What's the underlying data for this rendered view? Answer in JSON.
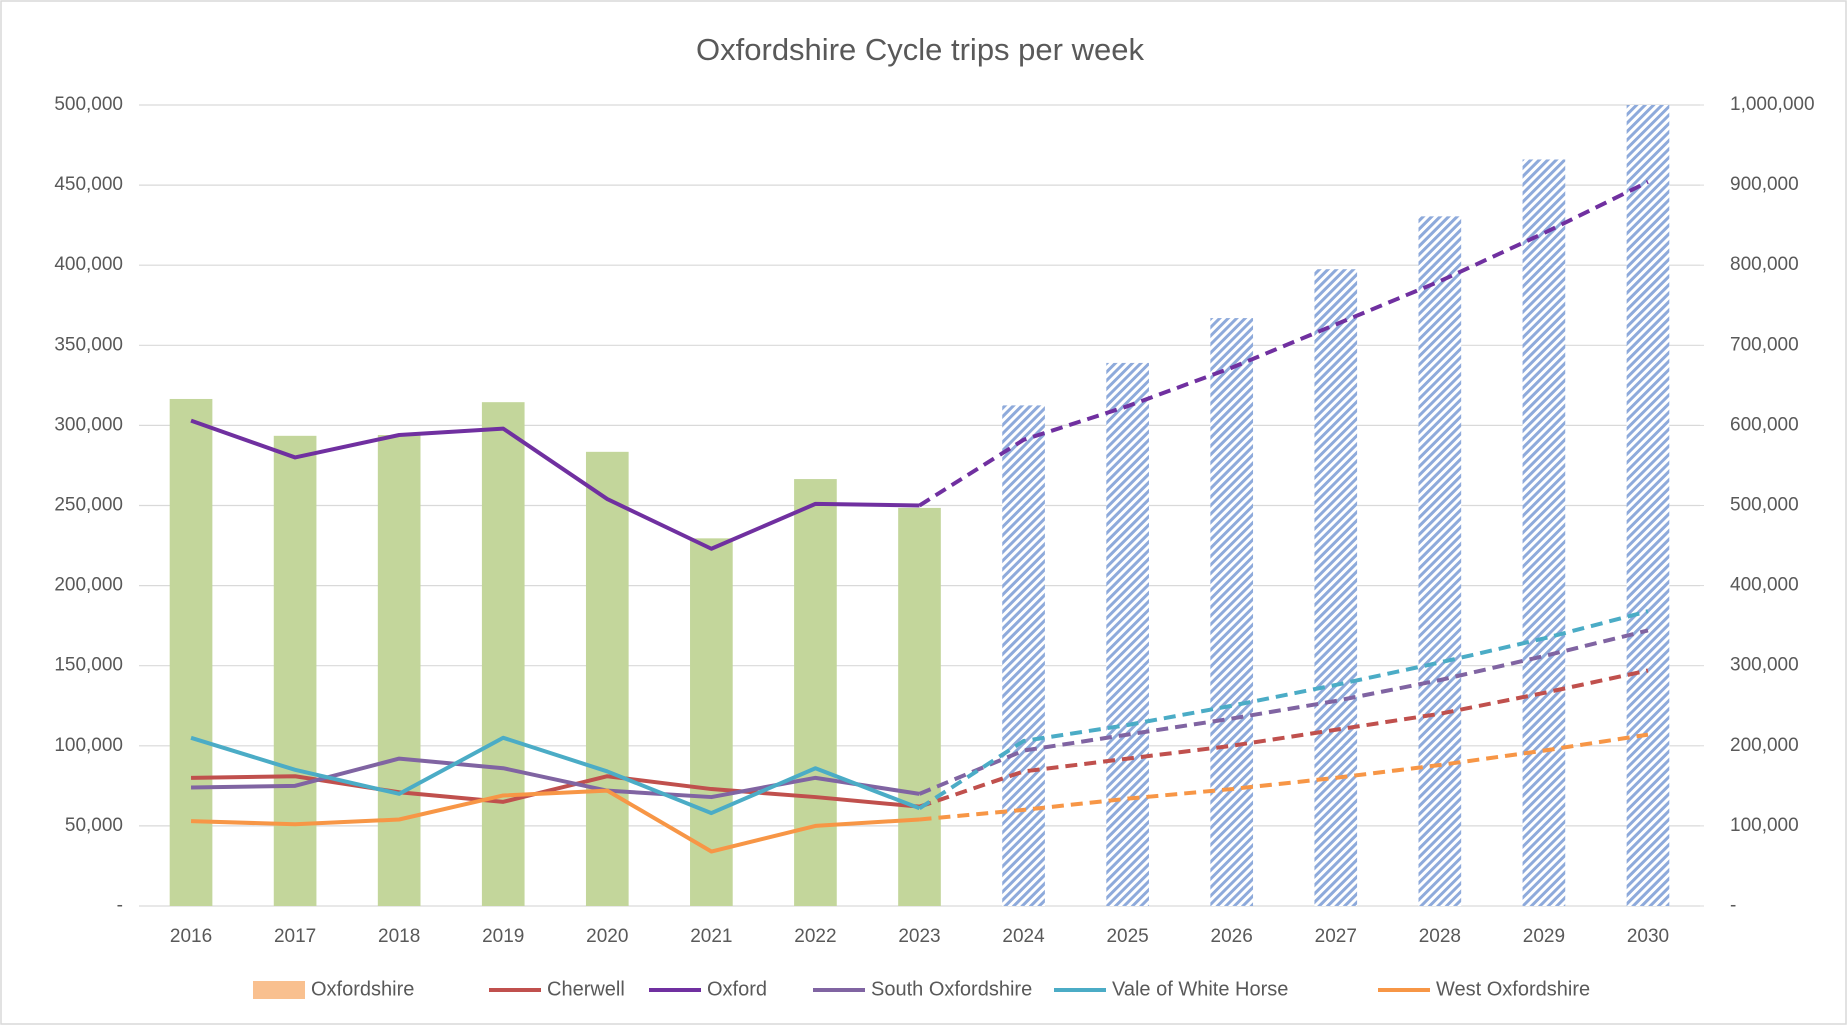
{
  "chart_data": {
    "type": "bar-line",
    "title": "Oxfordshire Cycle trips per week",
    "categories": [
      "2016",
      "2017",
      "2018",
      "2019",
      "2020",
      "2021",
      "2022",
      "2023",
      "2024",
      "2025",
      "2026",
      "2027",
      "2028",
      "2029",
      "2030"
    ],
    "forecast_after": "2023",
    "ylim": [
      0,
      500000
    ],
    "yticks": [
      {
        "value": 0,
        "label": "-"
      },
      {
        "value": 50000,
        "label": "50,000"
      },
      {
        "value": 100000,
        "label": "100,000"
      },
      {
        "value": 150000,
        "label": "150,000"
      },
      {
        "value": 200000,
        "label": "200,000"
      },
      {
        "value": 250000,
        "label": "250,000"
      },
      {
        "value": 300000,
        "label": "300,000"
      },
      {
        "value": 350000,
        "label": "350,000"
      },
      {
        "value": 400000,
        "label": "400,000"
      },
      {
        "value": 450000,
        "label": "450,000"
      },
      {
        "value": 500000,
        "label": "500,000"
      }
    ],
    "y2lim": [
      0,
      1000000
    ],
    "y2ticks": [
      {
        "value": 0,
        "label": "-"
      },
      {
        "value": 100000,
        "label": "100,000"
      },
      {
        "value": 200000,
        "label": "200,000"
      },
      {
        "value": 300000,
        "label": "300,000"
      },
      {
        "value": 400000,
        "label": "400,000"
      },
      {
        "value": 500000,
        "label": "500,000"
      },
      {
        "value": 600000,
        "label": "600,000"
      },
      {
        "value": 700000,
        "label": "700,000"
      },
      {
        "value": 800000,
        "label": "800,000"
      },
      {
        "value": 900000,
        "label": "900,000"
      },
      {
        "value": 1000000,
        "label": "1,000,000"
      }
    ],
    "grid": true,
    "legend": "bottom",
    "series": [
      {
        "name": "Oxfordshire",
        "type": "bar",
        "axis": "y2",
        "color": "#c3d69b",
        "forecast_color": "#8eaadb",
        "legend_color": "#f9c08f",
        "values": [
          633000,
          587000,
          588000,
          629000,
          567000,
          459000,
          533000,
          497000,
          625000,
          678000,
          734000,
          795000,
          861000,
          932000,
          1000000
        ]
      },
      {
        "name": "Cherwell",
        "type": "line",
        "color": "#c0504d",
        "width": 4,
        "values": [
          80000,
          81000,
          71000,
          65000,
          81000,
          73000,
          68000,
          62000,
          84000,
          92000,
          100000,
          110000,
          120000,
          133000,
          147000
        ]
      },
      {
        "name": "Oxford",
        "type": "line",
        "color": "#7030a0",
        "width": 4,
        "values": [
          303000,
          280000,
          294000,
          298000,
          254000,
          223000,
          251000,
          250000,
          291000,
          312000,
          336000,
          363000,
          390000,
          420000,
          452000
        ]
      },
      {
        "name": "South Oxfordshire",
        "type": "line",
        "color": "#8064a2",
        "width": 4,
        "values": [
          74000,
          75000,
          92000,
          86000,
          72000,
          68000,
          80000,
          70000,
          97000,
          107000,
          117000,
          128000,
          141000,
          156000,
          172000
        ]
      },
      {
        "name": "Vale of White Horse",
        "type": "line",
        "color": "#4bacc6",
        "width": 4,
        "values": [
          105000,
          85000,
          70000,
          105000,
          84000,
          58000,
          86000,
          61000,
          103000,
          113000,
          125000,
          138000,
          152000,
          167000,
          184000
        ]
      },
      {
        "name": "West Oxfordshire",
        "type": "line",
        "color": "#f79646",
        "width": 4,
        "values": [
          53000,
          51000,
          54000,
          69000,
          72000,
          34000,
          50000,
          54000,
          60000,
          67000,
          73000,
          80000,
          88000,
          97000,
          107000
        ]
      }
    ]
  }
}
